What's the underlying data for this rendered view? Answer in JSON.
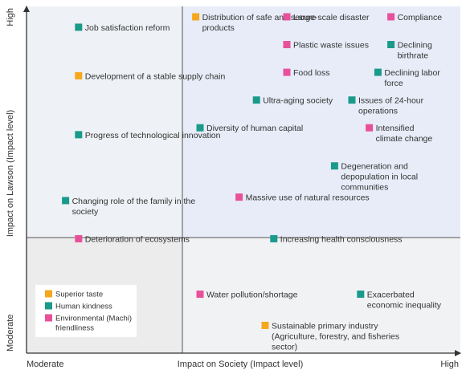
{
  "chart_data": {
    "type": "scatter",
    "xlabel": "Impact on Society (Impact level)",
    "ylabel": "Impact on Lawson (Impact level)",
    "x_min_label": "Moderate",
    "x_max_label": "High",
    "y_min_label": "Moderate",
    "y_max_label": "High",
    "legend": [
      {
        "name": "Superior taste",
        "color": "#f5a81c"
      },
      {
        "name": "Human kindness",
        "color": "#1a9a8a"
      },
      {
        "name": "Environmental (Machi) friendliness",
        "color": "#e8509a"
      }
    ],
    "points": [
      {
        "label": "Job satisfaction reform",
        "category": "Human kindness",
        "x": 0.12,
        "y": 0.94
      },
      {
        "label": "Development of a stable supply chain",
        "category": "Superior taste",
        "x": 0.12,
        "y": 0.8
      },
      {
        "label": "Progress of technological innovation",
        "category": "Human kindness",
        "x": 0.12,
        "y": 0.63
      },
      {
        "label": "Changing role of the family in the society",
        "category": "Human kindness",
        "x": 0.09,
        "y": 0.44
      },
      {
        "label": "Deterioration of ecosystems",
        "category": "Environmental (Machi) friendliness",
        "x": 0.12,
        "y": 0.33
      },
      {
        "label": "Distribution of safe and secure products",
        "category": "Superior taste",
        "x": 0.39,
        "y": 0.97
      },
      {
        "label": "Large-scale disaster",
        "category": "Environmental (Machi) friendliness",
        "x": 0.6,
        "y": 0.97
      },
      {
        "label": "Compliance",
        "category": "Environmental (Machi) friendliness",
        "x": 0.84,
        "y": 0.97
      },
      {
        "label": "Plastic waste issues",
        "category": "Environmental (Machi) friendliness",
        "x": 0.6,
        "y": 0.89
      },
      {
        "label": "Declining birthrate",
        "category": "Human kindness",
        "x": 0.84,
        "y": 0.89
      },
      {
        "label": "Food loss",
        "category": "Environmental (Machi) friendliness",
        "x": 0.6,
        "y": 0.81
      },
      {
        "label": "Declining labor force",
        "category": "Human kindness",
        "x": 0.81,
        "y": 0.81
      },
      {
        "label": "Ultra-aging society",
        "category": "Human kindness",
        "x": 0.53,
        "y": 0.73
      },
      {
        "label": "Issues of 24-hour operations",
        "category": "Human kindness",
        "x": 0.75,
        "y": 0.73
      },
      {
        "label": "Diversity of human capital",
        "category": "Human kindness",
        "x": 0.4,
        "y": 0.65
      },
      {
        "label": "Intensified climate change",
        "category": "Environmental (Machi) friendliness",
        "x": 0.79,
        "y": 0.65
      },
      {
        "label": "Degeneration and depopulation in local communities",
        "category": "Human kindness",
        "x": 0.71,
        "y": 0.54
      },
      {
        "label": "Massive use of natural resources",
        "category": "Environmental (Machi) friendliness",
        "x": 0.49,
        "y": 0.45
      },
      {
        "label": "Increasing health consciousness",
        "category": "Human kindness",
        "x": 0.57,
        "y": 0.33
      },
      {
        "label": "Water pollution/shortage",
        "category": "Environmental (Machi) friendliness",
        "x": 0.4,
        "y": 0.17
      },
      {
        "label": "Exacerbated economic inequality",
        "category": "Human kindness",
        "x": 0.77,
        "y": 0.17
      },
      {
        "label": "Sustainable primary industry (Agriculture, forestry, and fisheries sector)",
        "category": "Superior taste",
        "x": 0.55,
        "y": 0.08
      }
    ]
  }
}
